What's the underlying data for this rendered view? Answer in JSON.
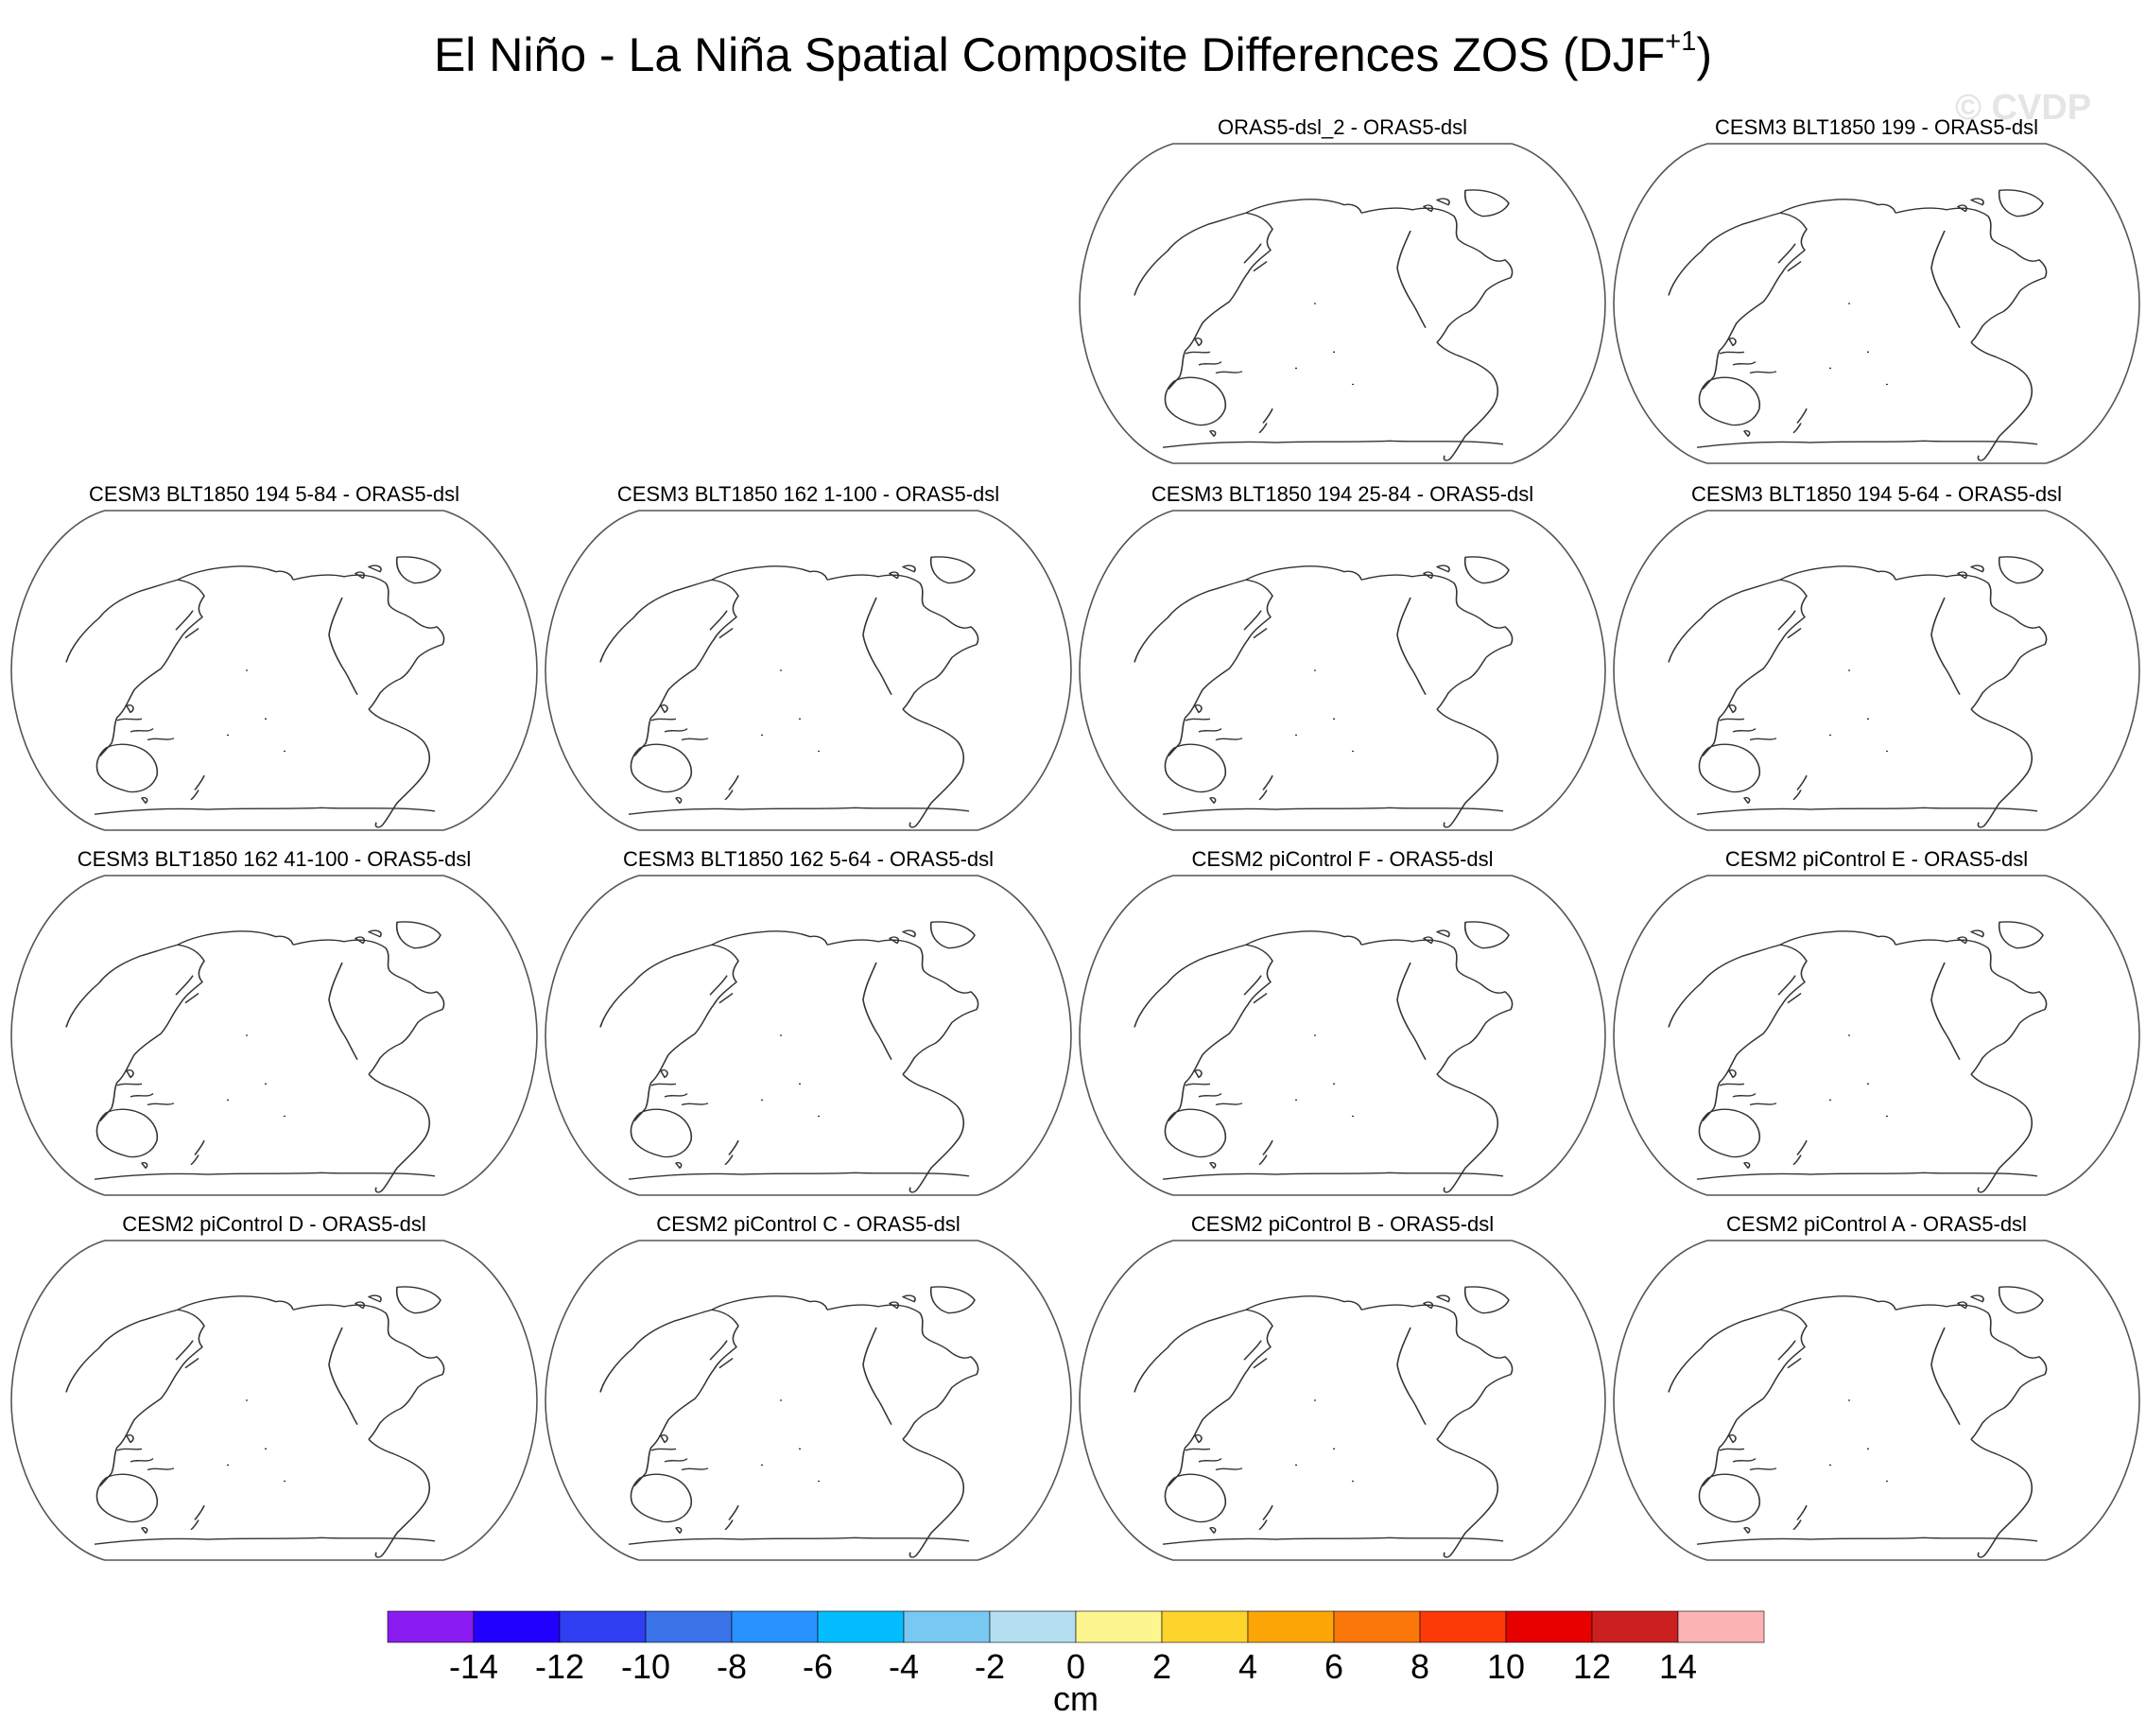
{
  "title": {
    "main": "El Niño - La Niña Spatial Composite Differences ZOS (DJF",
    "superscript": "+1",
    "close": ")"
  },
  "watermark": "© CVDP",
  "chart_data": {
    "type": "map-panels",
    "projection": "Robinson (Pacific-centered)",
    "panels": [
      {
        "title": "ORAS5-dsl_2 - ORAS5-dsl",
        "row": 0,
        "col": 2
      },
      {
        "title": "CESM3 BLT1850 199 - ORAS5-dsl",
        "row": 0,
        "col": 3
      },
      {
        "title": "CESM3 BLT1850 194 5-84 - ORAS5-dsl",
        "row": 1,
        "col": 0
      },
      {
        "title": "CESM3 BLT1850 162 1-100 - ORAS5-dsl",
        "row": 1,
        "col": 1
      },
      {
        "title": "CESM3 BLT1850 194 25-84 - ORAS5-dsl",
        "row": 1,
        "col": 2
      },
      {
        "title": "CESM3 BLT1850 194 5-64 - ORAS5-dsl",
        "row": 1,
        "col": 3
      },
      {
        "title": "CESM3 BLT1850 162 41-100 - ORAS5-dsl",
        "row": 2,
        "col": 0
      },
      {
        "title": "CESM3 BLT1850 162 5-64 - ORAS5-dsl",
        "row": 2,
        "col": 1
      },
      {
        "title": "CESM2 piControl F - ORAS5-dsl",
        "row": 2,
        "col": 2
      },
      {
        "title": "CESM2 piControl E - ORAS5-dsl",
        "row": 2,
        "col": 3
      },
      {
        "title": "CESM2 piControl D - ORAS5-dsl",
        "row": 3,
        "col": 0
      },
      {
        "title": "CESM2 piControl C - ORAS5-dsl",
        "row": 3,
        "col": 1
      },
      {
        "title": "CESM2 piControl B - ORAS5-dsl",
        "row": 3,
        "col": 2
      },
      {
        "title": "CESM2 piControl A - ORAS5-dsl",
        "row": 3,
        "col": 3
      }
    ],
    "colorbar": {
      "units": "cm",
      "ticks": [
        "-14",
        "-12",
        "-10",
        "-8",
        "-6",
        "-4",
        "-2",
        "0",
        "2",
        "4",
        "6",
        "8",
        "10",
        "12",
        "14"
      ],
      "colors": [
        "#8a1cf2",
        "#2200ff",
        "#2e3ef0",
        "#3a72e8",
        "#2a92ff",
        "#03bdff",
        "#78c8f2",
        "#b3dff0",
        "#fdf68e",
        "#fdd42b",
        "#fda607",
        "#fc770a",
        "#fc3a07",
        "#e60000",
        "#cc1f1f",
        "#fcb3b3"
      ]
    }
  }
}
